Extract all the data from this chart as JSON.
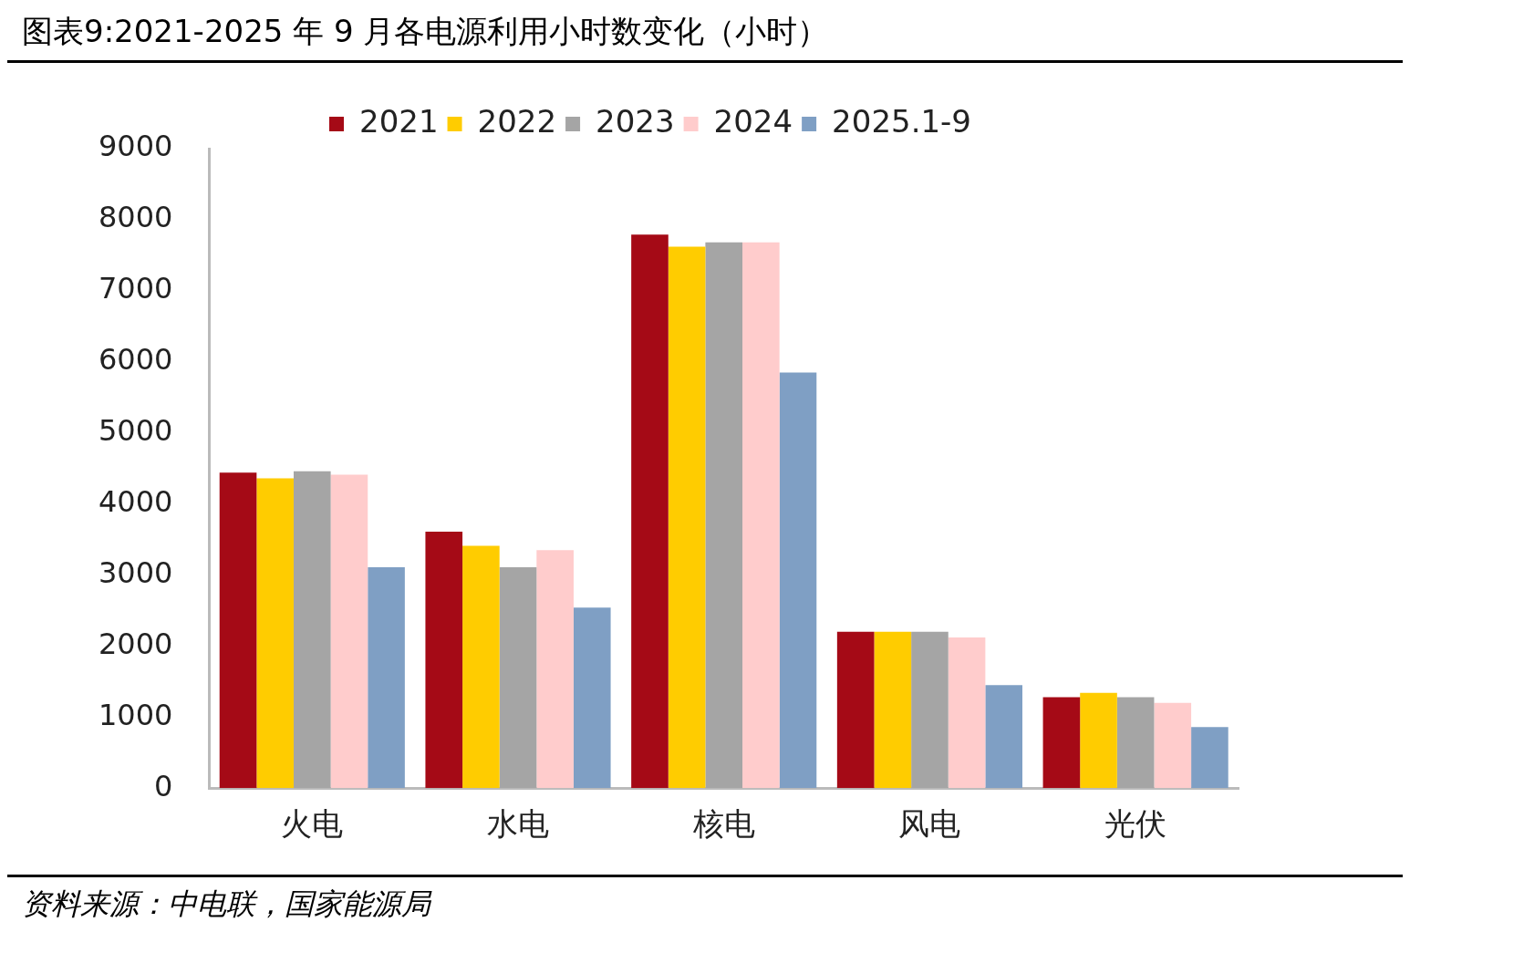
{
  "chart_data": {
    "type": "bar",
    "title": "图表9:2021-2025 年 9 月各电源利用小时数变化（小时）",
    "categories": [
      "火电",
      "水电",
      "核电",
      "风电",
      "光伏"
    ],
    "series": [
      {
        "name": "2021",
        "color": "#a50a16",
        "values": [
          4440,
          3610,
          7790,
          2200,
          1280
        ]
      },
      {
        "name": "2022",
        "color": "#ffcc00",
        "values": [
          4360,
          3410,
          7620,
          2200,
          1340
        ]
      },
      {
        "name": "2023",
        "color": "#a5a5a5",
        "values": [
          4460,
          3110,
          7680,
          2200,
          1280
        ]
      },
      {
        "name": "2024",
        "color": "#ffcccc",
        "values": [
          4410,
          3350,
          7680,
          2120,
          1200
        ]
      },
      {
        "name": "2025.1-9",
        "color": "#7f9fc4",
        "values": [
          3110,
          2540,
          5850,
          1450,
          860
        ]
      }
    ],
    "ylim": [
      0,
      9000
    ],
    "yticks": [
      0,
      1000,
      2000,
      3000,
      4000,
      5000,
      6000,
      7000,
      8000,
      9000
    ],
    "grid": false,
    "legend": "top",
    "annotations": [
      "资料来源：中电联，国家能源局"
    ]
  }
}
